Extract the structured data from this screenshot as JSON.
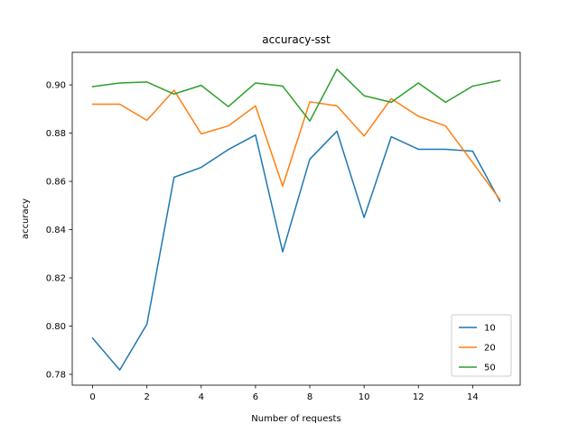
{
  "chart_data": {
    "type": "line",
    "title": "accuracy-sst",
    "xlabel": "Number of requests",
    "ylabel": "accuracy",
    "x": [
      0,
      1,
      2,
      3,
      4,
      5,
      6,
      7,
      8,
      9,
      10,
      11,
      12,
      13,
      14,
      15
    ],
    "xlim": [
      -0.75,
      15.75
    ],
    "ylim": [
      0.7755,
      0.9135
    ],
    "xticks": [
      0,
      2,
      4,
      6,
      8,
      10,
      12,
      14
    ],
    "yticks": [
      0.78,
      0.8,
      0.82,
      0.84,
      0.86,
      0.88,
      0.9
    ],
    "xtick_labels": [
      "0",
      "2",
      "4",
      "6",
      "8",
      "10",
      "12",
      "14"
    ],
    "ytick_labels": [
      "0.78",
      "0.80",
      "0.82",
      "0.84",
      "0.86",
      "0.88",
      "0.90"
    ],
    "grid": false,
    "legend": "lower-right",
    "series": [
      {
        "name": "10",
        "color": "#1f77b4",
        "values": [
          0.795,
          0.7818,
          0.8008,
          0.8617,
          0.8658,
          0.8732,
          0.8792,
          0.8308,
          0.8692,
          0.8808,
          0.845,
          0.8785,
          0.8733,
          0.8733,
          0.8725,
          0.8518
        ]
      },
      {
        "name": "20",
        "color": "#ff7f0e",
        "values": [
          0.892,
          0.892,
          0.8853,
          0.8978,
          0.8797,
          0.883,
          0.8913,
          0.858,
          0.893,
          0.8913,
          0.8788,
          0.8943,
          0.887,
          0.883,
          0.8678,
          0.8525
        ]
      },
      {
        "name": "50",
        "color": "#2ca02c",
        "values": [
          0.8993,
          0.9008,
          0.9012,
          0.8962,
          0.8998,
          0.891,
          0.9008,
          0.8995,
          0.885,
          0.9065,
          0.8955,
          0.8928,
          0.9008,
          0.8928,
          0.8995,
          0.9018
        ]
      }
    ]
  }
}
